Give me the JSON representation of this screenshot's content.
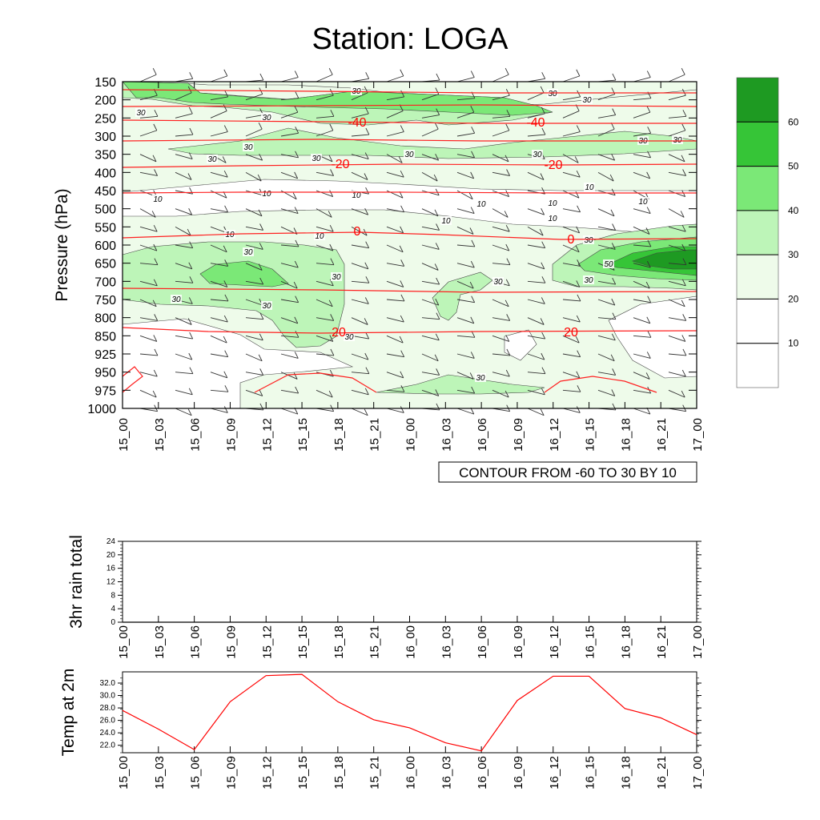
{
  "title": "Station: LOGA",
  "chart_data": [
    {
      "type": "heatmap",
      "subtype": "time-pressure cross-section (filled relative humidity contours, temperature contour lines, wind barbs)",
      "ylabel": "Pressure (hPa)",
      "y_ticks": [
        "150",
        "200",
        "250",
        "300",
        "350",
        "400",
        "450",
        "500",
        "550",
        "600",
        "650",
        "700",
        "750",
        "800",
        "850",
        "925",
        "950",
        "975",
        "1000"
      ],
      "x_ticks": [
        "15_00",
        "15_03",
        "15_06",
        "15_09",
        "15_12",
        "15_15",
        "15_18",
        "15_21",
        "16_00",
        "16_03",
        "16_06",
        "16_09",
        "16_12",
        "16_15",
        "16_18",
        "16_21",
        "17_00"
      ],
      "colorbar": {
        "levels": [
          "10",
          "20",
          "30",
          "40",
          "50",
          "60"
        ],
        "colors": [
          "#ffffff",
          "#ffffff",
          "#eefbea",
          "#bdf5b8",
          "#7be877",
          "#36c537",
          "#1e9a22"
        ]
      },
      "fill_labels": [
        "30",
        "30",
        "30",
        "30",
        "30",
        "30",
        "30",
        "30",
        "30",
        "30",
        "30",
        "30",
        "30",
        "30",
        "30",
        "30",
        "30",
        "30",
        "30",
        "30",
        "30",
        "50",
        "10",
        "10",
        "10",
        "10",
        "10",
        "10",
        "10",
        "10",
        "10",
        "10",
        "10"
      ],
      "temperature_contours": [
        {
          "value": -40,
          "level_hPa": 250
        },
        {
          "value": -20,
          "level_hPa": 375
        },
        {
          "value": 0,
          "level_hPa": 585
        },
        {
          "value": 20,
          "level_hPa": 830
        }
      ],
      "temperature_labels": [
        "-40",
        "-40",
        "-20",
        "-20",
        "0",
        "0",
        "20",
        "20"
      ],
      "info_box": "CONTOUR FROM -60 TO 30 BY 10"
    },
    {
      "type": "line",
      "ylabel": "3hr rain total",
      "ylim": [
        0,
        24
      ],
      "y_ticks": [
        "0",
        "4",
        "8",
        "12",
        "16",
        "20",
        "24"
      ],
      "x": [
        "15_00",
        "15_03",
        "15_06",
        "15_09",
        "15_12",
        "15_15",
        "15_18",
        "15_21",
        "16_00",
        "16_03",
        "16_06",
        "16_09",
        "16_12",
        "16_15",
        "16_18",
        "16_21",
        "17_00"
      ],
      "values": [
        0,
        0,
        0,
        0,
        0,
        0,
        0,
        0,
        0,
        0,
        0,
        0,
        0,
        0,
        0,
        0,
        0
      ]
    },
    {
      "type": "line",
      "ylabel": "Temp at 2m",
      "ylim": [
        20.8,
        33.8
      ],
      "y_ticks": [
        "22.0",
        "24.0",
        "26.0",
        "28.0",
        "30.0",
        "32.0"
      ],
      "x": [
        "15_00",
        "15_03",
        "15_06",
        "15_09",
        "15_12",
        "15_15",
        "15_18",
        "15_21",
        "16_00",
        "16_03",
        "16_06",
        "16_09",
        "16_12",
        "16_15",
        "16_18",
        "16_21",
        "17_00"
      ],
      "values": [
        27.6,
        24.6,
        21.3,
        29.0,
        33.2,
        33.4,
        29.0,
        26.1,
        24.8,
        22.4,
        21.1,
        29.2,
        33.1,
        33.1,
        27.9,
        26.4,
        23.7
      ],
      "color": "#ff0000"
    }
  ]
}
